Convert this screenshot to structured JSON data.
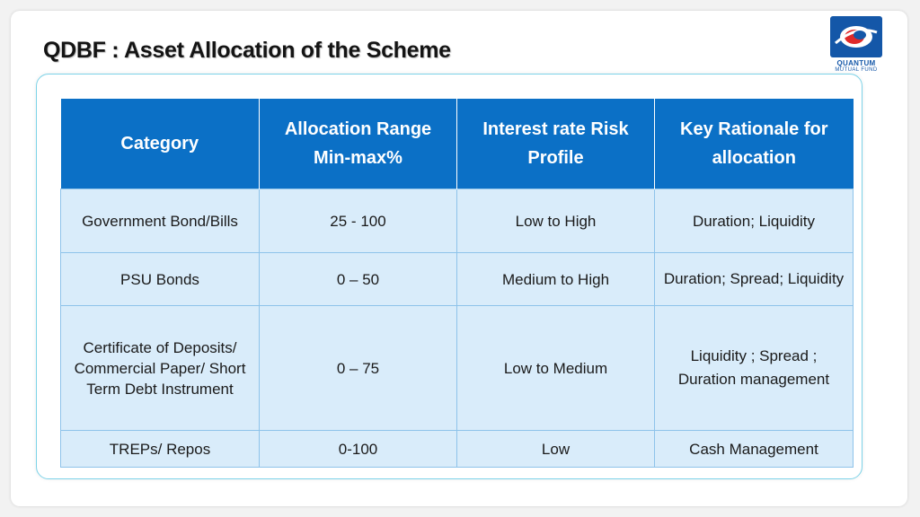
{
  "title": "QDBF : Asset Allocation of the Scheme",
  "logo": {
    "line1": "QUANTUM",
    "line2": "MUTUAL FUND"
  },
  "table": {
    "headers": [
      "Category",
      "Allocation Range Min-max%",
      "Interest rate Risk Profile",
      "Key Rationale for allocation"
    ],
    "rows": [
      [
        "Government Bond/Bills",
        "25 - 100",
        "Low to High",
        "Duration; Liquidity"
      ],
      [
        "PSU Bonds",
        "0 – 50",
        "Medium  to High",
        "Duration; Spread; Liquidity"
      ],
      [
        "Certificate of Deposits/ Commercial Paper/ Short Term Debt Instrument",
        "0 – 75",
        "Low to Medium",
        "Liquidity ; Spread ; Duration management"
      ],
      [
        "TREPs/ Repos",
        "0-100",
        "Low",
        "Cash Management"
      ]
    ]
  },
  "colors": {
    "header_bg": "#0b70c6",
    "cell_bg": "#d9ecfa",
    "card_border": "#7dd3e8"
  }
}
